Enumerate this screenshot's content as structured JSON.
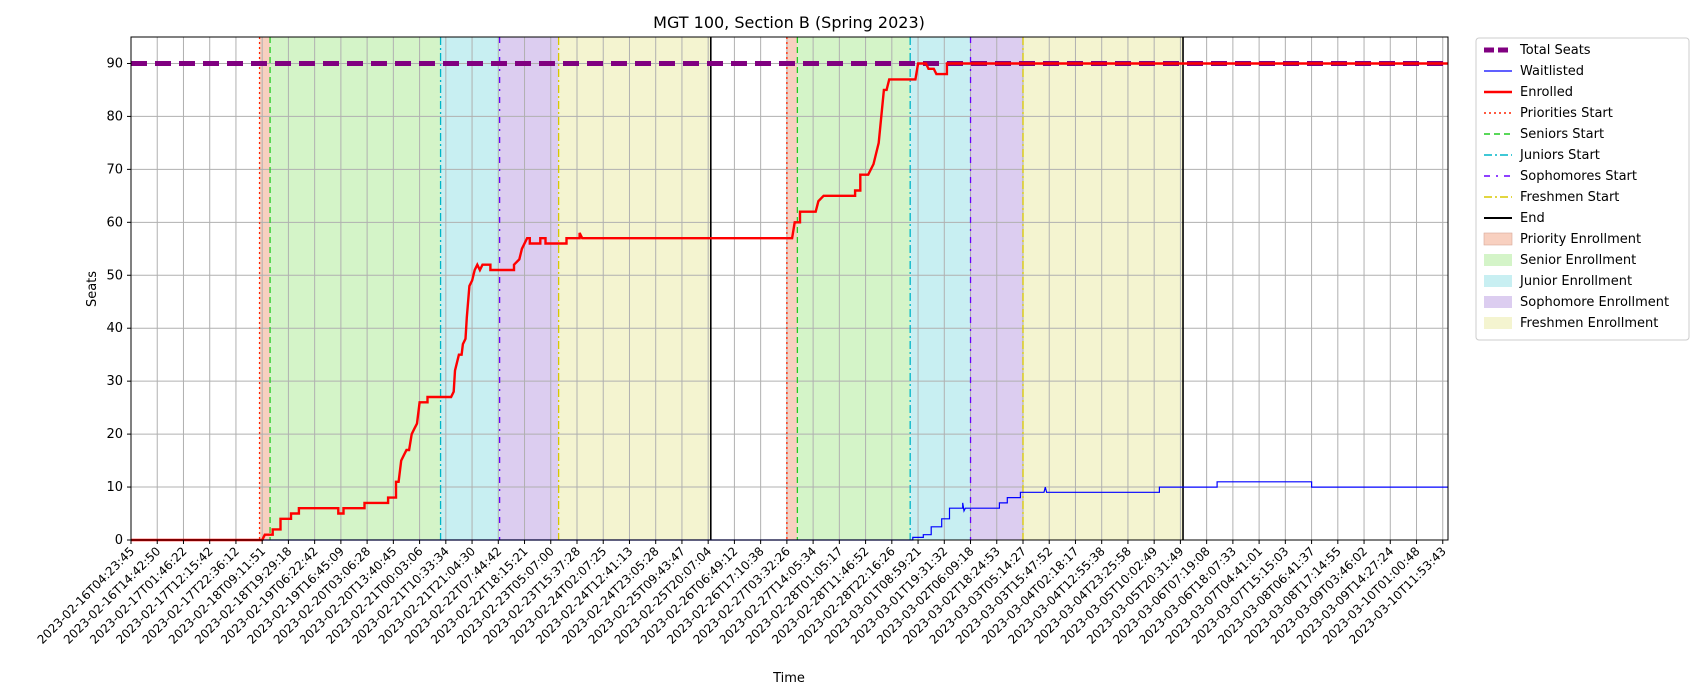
{
  "chart_data": {
    "type": "line",
    "title": "MGT 100, Section B (Spring 2023)",
    "xlabel": "Time",
    "ylabel": "Seats",
    "ylim": [
      0,
      95
    ],
    "yticks": [
      0,
      10,
      20,
      30,
      40,
      50,
      60,
      70,
      80,
      90
    ],
    "grid": true,
    "legend_position": "outside-right",
    "x_ticks": [
      "2023-02-16T04:23:45",
      "2023-02-16T14:42:50",
      "2023-02-17T01:46:22",
      "2023-02-17T12:15:42",
      "2023-02-17T22:36:12",
      "2023-02-18T09:11:51",
      "2023-02-18T19:29:18",
      "2023-02-19T06:22:42",
      "2023-02-19T16:45:09",
      "2023-02-20T03:06:28",
      "2023-02-20T13:40:45",
      "2023-02-21T00:03:06",
      "2023-02-21T10:33:34",
      "2023-02-21T21:04:30",
      "2023-02-22T07:44:42",
      "2023-02-22T18:15:21",
      "2023-02-23T05:07:00",
      "2023-02-23T15:37:28",
      "2023-02-24T02:07:25",
      "2023-02-24T12:41:13",
      "2023-02-24T23:05:28",
      "2023-02-25T09:43:47",
      "2023-02-25T20:07:04",
      "2023-02-26T06:49:12",
      "2023-02-26T17:10:38",
      "2023-02-27T03:32:26",
      "2023-02-27T14:05:34",
      "2023-02-28T01:05:17",
      "2023-02-28T11:46:52",
      "2023-02-28T22:16:26",
      "2023-03-01T08:59:21",
      "2023-03-01T19:31:32",
      "2023-03-02T06:09:18",
      "2023-03-02T18:24:53",
      "2023-03-03T05:14:27",
      "2023-03-03T15:47:52",
      "2023-03-04T02:18:17",
      "2023-03-04T12:55:38",
      "2023-03-04T23:25:58",
      "2023-03-05T10:02:49",
      "2023-03-05T20:31:49",
      "2023-03-06T07:19:08",
      "2023-03-06T18:07:33",
      "2023-03-07T04:41:01",
      "2023-03-07T15:15:03",
      "2023-03-08T06:41:37",
      "2023-03-08T17:14:55",
      "2023-03-09T03:46:02",
      "2023-03-09T14:27:24",
      "2023-03-10T01:00:48",
      "2023-03-10T11:53:43"
    ],
    "x_unit": "tick index",
    "x_range": [
      0,
      50.2
    ],
    "series": [
      {
        "name": "Total Seats",
        "color": "#800080",
        "style": "dashed-thick",
        "points": [
          [
            0,
            90
          ],
          [
            50.2,
            90
          ]
        ]
      },
      {
        "name": "Waitlisted",
        "color": "#0000ff",
        "style": "solid-thin",
        "points": [
          [
            0,
            0
          ],
          [
            29.8,
            0
          ],
          [
            29.8,
            0.5
          ],
          [
            30.2,
            0.5
          ],
          [
            30.2,
            1
          ],
          [
            30.5,
            1
          ],
          [
            30.5,
            2.5
          ],
          [
            30.9,
            2.5
          ],
          [
            30.9,
            4
          ],
          [
            31.2,
            4
          ],
          [
            31.2,
            6
          ],
          [
            31.7,
            6
          ],
          [
            31.7,
            7
          ],
          [
            31.75,
            5.5
          ],
          [
            31.8,
            6
          ],
          [
            33.1,
            6
          ],
          [
            33.1,
            7
          ],
          [
            33.4,
            7
          ],
          [
            33.4,
            8
          ],
          [
            33.9,
            8
          ],
          [
            33.9,
            9
          ],
          [
            34.8,
            9
          ],
          [
            34.85,
            10
          ],
          [
            34.9,
            9
          ],
          [
            39.2,
            9
          ],
          [
            39.2,
            10
          ],
          [
            41.4,
            10
          ],
          [
            41.4,
            11
          ],
          [
            45,
            11
          ],
          [
            45,
            10
          ],
          [
            50.2,
            10
          ]
        ]
      },
      {
        "name": "Enrolled",
        "color": "#ff0000",
        "style": "solid-thick",
        "points": [
          [
            0,
            0
          ],
          [
            5,
            0
          ],
          [
            5.1,
            1
          ],
          [
            5.4,
            1
          ],
          [
            5.4,
            2
          ],
          [
            5.7,
            2
          ],
          [
            5.7,
            4
          ],
          [
            6.1,
            4
          ],
          [
            6.1,
            5
          ],
          [
            6.4,
            5
          ],
          [
            6.4,
            6
          ],
          [
            7.9,
            6
          ],
          [
            7.9,
            5
          ],
          [
            8.1,
            5
          ],
          [
            8.1,
            6
          ],
          [
            8.9,
            6
          ],
          [
            8.9,
            7
          ],
          [
            9.8,
            7
          ],
          [
            9.8,
            8
          ],
          [
            10.1,
            8
          ],
          [
            10.1,
            11
          ],
          [
            10.2,
            11
          ],
          [
            10.3,
            15
          ],
          [
            10.4,
            16
          ],
          [
            10.5,
            17
          ],
          [
            10.6,
            17
          ],
          [
            10.7,
            20
          ],
          [
            10.8,
            21
          ],
          [
            10.9,
            22
          ],
          [
            11,
            26
          ],
          [
            11.3,
            26
          ],
          [
            11.3,
            27
          ],
          [
            12.2,
            27
          ],
          [
            12.3,
            28
          ],
          [
            12.35,
            32
          ],
          [
            12.5,
            35
          ],
          [
            12.6,
            35
          ],
          [
            12.65,
            37
          ],
          [
            12.75,
            38
          ],
          [
            12.8,
            42
          ],
          [
            12.9,
            48
          ],
          [
            13,
            49
          ],
          [
            13.1,
            51
          ],
          [
            13.2,
            52
          ],
          [
            13.3,
            51
          ],
          [
            13.4,
            52
          ],
          [
            13.7,
            52
          ],
          [
            13.7,
            51
          ],
          [
            14.6,
            51
          ],
          [
            14.6,
            52
          ],
          [
            14.8,
            53
          ],
          [
            14.85,
            54
          ],
          [
            14.9,
            55
          ],
          [
            15,
            56
          ],
          [
            15.1,
            57
          ],
          [
            15.2,
            57
          ],
          [
            15.2,
            56
          ],
          [
            15.6,
            56
          ],
          [
            15.6,
            57
          ],
          [
            15.8,
            57
          ],
          [
            15.8,
            56
          ],
          [
            16.6,
            56
          ],
          [
            16.6,
            57
          ],
          [
            17.1,
            57
          ],
          [
            17.1,
            58
          ],
          [
            17.2,
            57
          ],
          [
            25.2,
            57
          ],
          [
            25.3,
            60
          ],
          [
            25.5,
            60
          ],
          [
            25.5,
            62
          ],
          [
            26.1,
            62
          ],
          [
            26.2,
            64
          ],
          [
            26.4,
            65
          ],
          [
            27.6,
            65
          ],
          [
            27.6,
            66
          ],
          [
            27.8,
            66
          ],
          [
            27.8,
            69
          ],
          [
            28.1,
            69
          ],
          [
            28.3,
            71
          ],
          [
            28.4,
            73
          ],
          [
            28.5,
            75
          ],
          [
            28.6,
            80
          ],
          [
            28.7,
            85
          ],
          [
            28.8,
            85
          ],
          [
            28.9,
            87
          ],
          [
            29.9,
            87
          ],
          [
            30,
            90
          ],
          [
            30.3,
            90
          ],
          [
            30.4,
            89
          ],
          [
            30.6,
            89
          ],
          [
            30.7,
            88
          ],
          [
            31.1,
            88
          ],
          [
            31.1,
            90
          ],
          [
            50.2,
            90
          ]
        ]
      }
    ],
    "markers": [
      {
        "name": "Priorities Start",
        "color": "#ff2200",
        "style": "dotted",
        "x": [
          4.9,
          25.0
        ]
      },
      {
        "name": "Seniors Start",
        "color": "#22cc22",
        "style": "dashed",
        "x": [
          5.3,
          25.4
        ]
      },
      {
        "name": "Juniors Start",
        "color": "#00b5c8",
        "style": "dashdot",
        "x": [
          11.8,
          29.7
        ]
      },
      {
        "name": "Sophomores Start",
        "color": "#6a00ff",
        "style": "dashdot-dense",
        "x": [
          14.05,
          32.0
        ]
      },
      {
        "name": "Freshmen Start",
        "color": "#d8c800",
        "style": "dashdot",
        "x": [
          16.3,
          34.0
        ]
      },
      {
        "name": "End",
        "color": "#000000",
        "style": "solid",
        "x": [
          22.1,
          40.1
        ]
      }
    ],
    "bands": [
      {
        "name": "Priority Enrollment",
        "color": "#f8d0c0",
        "ranges": [
          [
            4.9,
            5.3
          ],
          [
            25.0,
            25.4
          ]
        ]
      },
      {
        "name": "Senior Enrollment",
        "color": "#d4f4c8",
        "ranges": [
          [
            5.3,
            11.8
          ],
          [
            25.4,
            29.7
          ]
        ]
      },
      {
        "name": "Junior Enrollment",
        "color": "#c8eff2",
        "ranges": [
          [
            11.8,
            14.05
          ],
          [
            29.7,
            32.0
          ]
        ]
      },
      {
        "name": "Sophomore Enrollment",
        "color": "#dccdf0",
        "ranges": [
          [
            14.05,
            16.3
          ],
          [
            32.0,
            34.0
          ]
        ]
      },
      {
        "name": "Freshmen Enrollment",
        "color": "#f4f4d0",
        "ranges": [
          [
            16.3,
            22.1
          ],
          [
            34.0,
            40.1
          ]
        ]
      }
    ]
  }
}
